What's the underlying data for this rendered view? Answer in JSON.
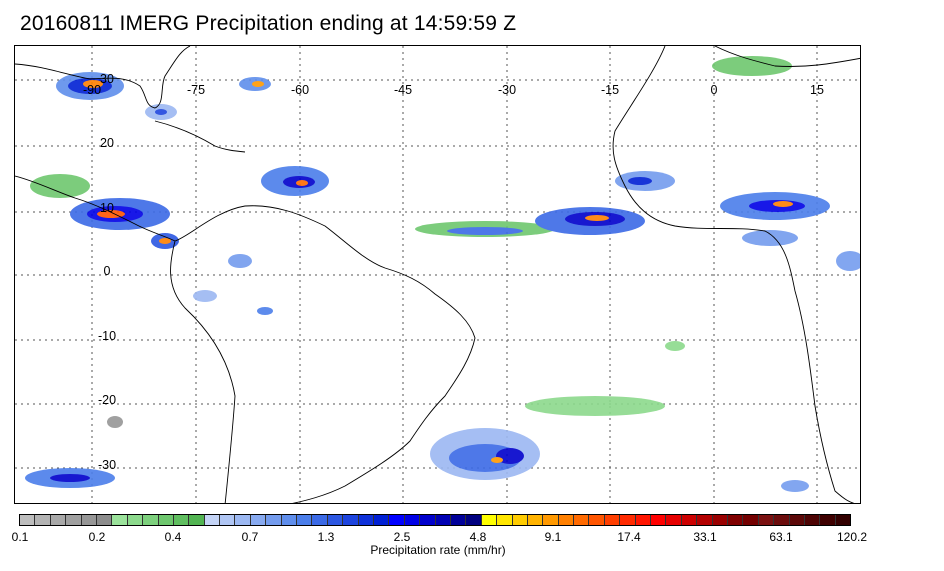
{
  "title": "20160811 IMERG Precipitation ending at 14:59:59 Z",
  "map": {
    "lon_labels": [
      "-90",
      "-75",
      "-60",
      "-45",
      "-30",
      "-15",
      "0",
      "15"
    ],
    "lat_labels": [
      "30",
      "20",
      "10",
      "0",
      "-10",
      "-20",
      "-30"
    ],
    "gridline_style": "dotted",
    "coastline_color": "#000000"
  },
  "colorbar": {
    "label": "Precipitation rate (mm/hr)",
    "tick_labels": [
      "0.1",
      "0.2",
      "0.4",
      "0.7",
      "1.3",
      "2.5",
      "4.8",
      "9.1",
      "17.4",
      "33.1",
      "63.1",
      "120.2"
    ],
    "colors": [
      "#bdbdbd",
      "#b3b3b3",
      "#a9a9a9",
      "#a0a0a0",
      "#969696",
      "#8c8c8c",
      "#9be29b",
      "#8cd98c",
      "#7dd07d",
      "#6ec76e",
      "#60be60",
      "#52b452",
      "#c4d4f6",
      "#b0c6f4",
      "#9cb8f2",
      "#88aaf0",
      "#749cee",
      "#5f8eec",
      "#4b7eea",
      "#3b6ae6",
      "#2c57e2",
      "#1d44de",
      "#0e31d9",
      "#0020d4",
      "#0000ff",
      "#0000e6",
      "#0000cc",
      "#0000b3",
      "#000099",
      "#000080",
      "#ffff00",
      "#ffe600",
      "#ffcc00",
      "#ffb300",
      "#ff9900",
      "#ff8000",
      "#ff6a00",
      "#ff5500",
      "#ff3f00",
      "#ff2a00",
      "#ff1500",
      "#ff0000",
      "#e60000",
      "#cc0000",
      "#b30000",
      "#990000",
      "#800000",
      "#730000",
      "#7a1010",
      "#6b0c0c",
      "#5c0808",
      "#4d0404",
      "#3f0000",
      "#330000"
    ]
  }
}
